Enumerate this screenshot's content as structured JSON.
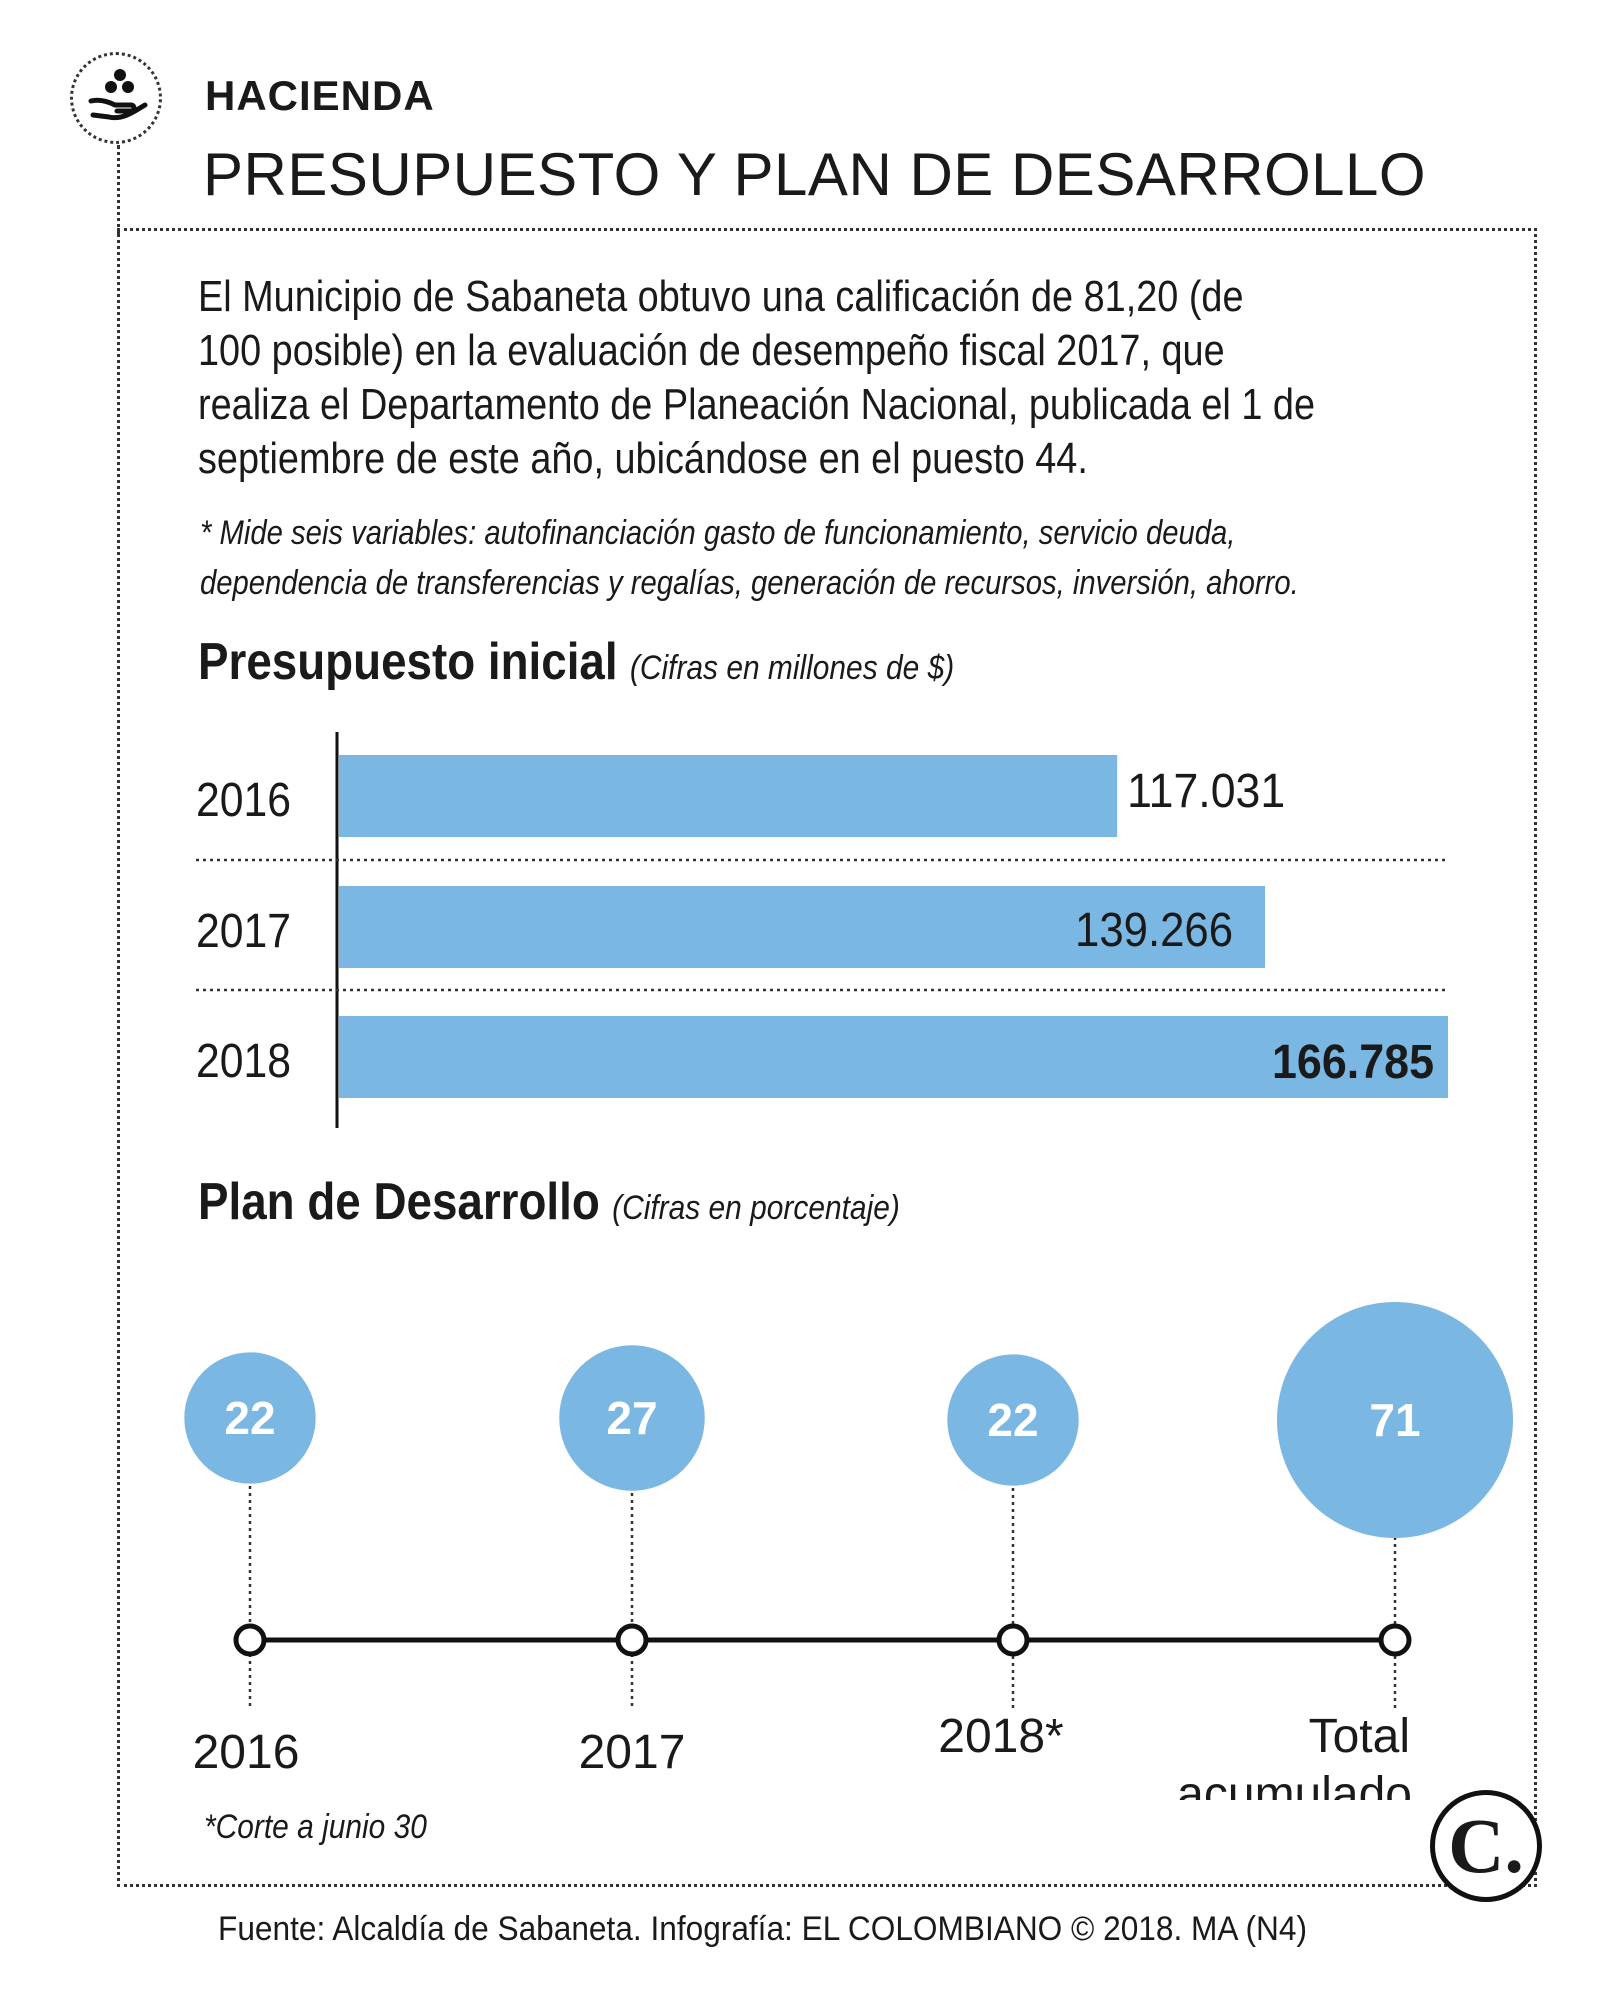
{
  "header": {
    "section": "HACIENDA",
    "title": "PRESUPUESTO Y PLAN DE DESARROLLO",
    "icon": "hand-coins-icon"
  },
  "intro": {
    "line1": "El Municipio de Sabaneta obtuvo una calificación de 81,20  (de",
    "line2": "100 posible) en la evaluación de desempeño fiscal 2017, que",
    "line3": "realiza el Departamento de Planeación Nacional, publicada el 1 de",
    "line4": "septiembre de este año, ubicándose en el puesto 44."
  },
  "note": {
    "line1": "* Mide seis variables: autofinanciación gasto de funcionamiento, servicio deuda,",
    "line2": "dependencia de transferencias y regalías, generación de recursos, inversión, ahorro."
  },
  "budget": {
    "title": "Presupuesto inicial",
    "subtitle": "(Cifras en millones de $)"
  },
  "plan": {
    "title": "Plan de Desarrollo",
    "subtitle": "(Cifras en porcentaje)"
  },
  "footnote": "*Corte a junio 30",
  "source": "Fuente: Alcaldía de Sabaneta. Infografía: EL COLOMBIANO © 2018. MA (N4)",
  "logo": "C.",
  "colors": {
    "bar": "#7ab7e3",
    "text": "#1a1a1a",
    "label_on_circle": "#ffffff"
  },
  "chart_data": [
    {
      "type": "bar",
      "orientation": "horizontal",
      "title": "Presupuesto inicial",
      "subtitle": "(Cifras en millones de $)",
      "categories": [
        "2016",
        "2017",
        "2018"
      ],
      "values": [
        117031,
        139266,
        166785
      ],
      "value_labels": [
        "117.031",
        "139.266",
        "166.785"
      ],
      "xlim": [
        0,
        166785
      ],
      "grid": false
    },
    {
      "type": "scatter",
      "subtitle": "(Cifras en porcentaje)",
      "title": "Plan de Desarrollo",
      "categories": [
        "2016",
        "2017",
        "2018*",
        "Total acumulado"
      ],
      "values": [
        22,
        27,
        22,
        71
      ],
      "value_labels": [
        "22",
        "27",
        "22",
        "71"
      ]
    }
  ]
}
